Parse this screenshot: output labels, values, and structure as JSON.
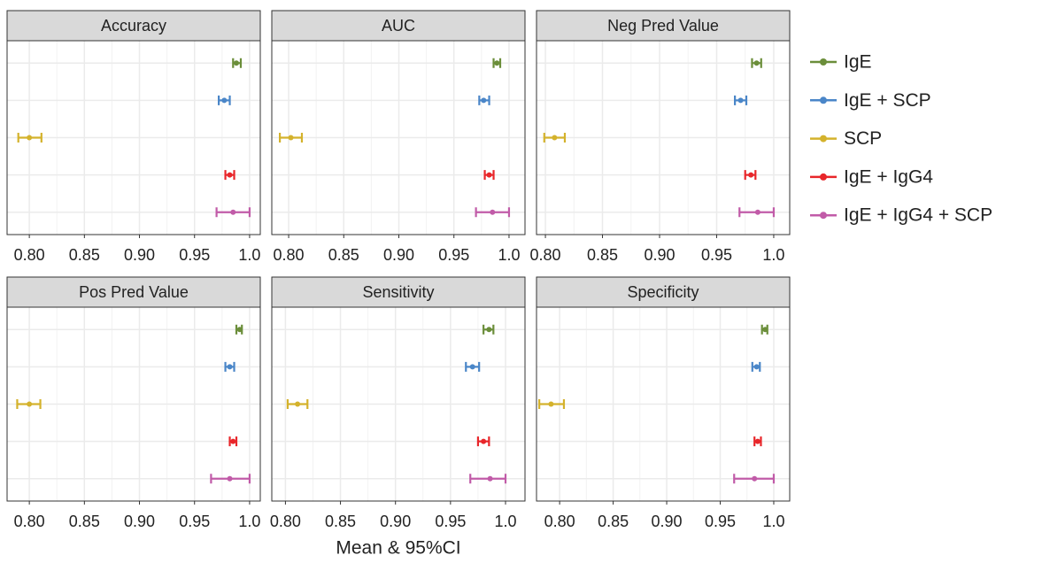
{
  "chart_data": {
    "type": "errorbar",
    "x_label": "Mean & 95%CI",
    "grid": true,
    "legend_position": "right",
    "series": [
      {
        "name": "IgE",
        "color": "#6b8e3a"
      },
      {
        "name": "IgE + SCP",
        "color": "#4a86c8"
      },
      {
        "name": "SCP",
        "color": "#d4b22c"
      },
      {
        "name": "IgE + IgG4",
        "color": "#e8262a"
      },
      {
        "name": "IgE + IgG4 + SCP",
        "color": "#c15ba8"
      }
    ],
    "panels": [
      {
        "title": "Accuracy",
        "xlim": [
          0.7798,
          1.0097
        ],
        "xticks": [
          {
            "value": 0.8,
            "label": "0.80"
          },
          0.85,
          {
            "value": 0.9,
            "label": "0.90"
          },
          0.95,
          {
            "value": 1,
            "label": "1.0"
          }
        ],
        "x_minor_ticks": [
          0.825,
          0.875,
          0.925,
          0.975
        ],
        "values": [
          0.988,
          0.977,
          0.8,
          0.982,
          0.985
        ],
        "lower": [
          0.985,
          0.972,
          0.79,
          0.978,
          0.97
        ],
        "upper": [
          0.992,
          0.982,
          0.811,
          0.986,
          1.0
        ]
      },
      {
        "title": "AUC",
        "xlim": [
          0.7847,
          1.0145
        ],
        "xticks": [
          {
            "value": 0.8,
            "label": "0.80"
          },
          0.85,
          {
            "value": 0.9,
            "label": "0.90"
          },
          0.95,
          {
            "value": 1,
            "label": "1.0"
          }
        ],
        "x_minor_ticks": [
          0.825,
          0.875,
          0.925,
          0.975
        ],
        "values": [
          0.989,
          0.977,
          0.802,
          0.982,
          0.985
        ],
        "lower": [
          0.986,
          0.973,
          0.792,
          0.978,
          0.97
        ],
        "upper": [
          0.992,
          0.982,
          0.812,
          0.986,
          1.0
        ]
      },
      {
        "title": "Neg Pred Value",
        "xlim": [
          0.7922,
          1.014
        ],
        "xticks": [
          {
            "value": 0.8,
            "label": "0.80"
          },
          0.85,
          {
            "value": 0.9,
            "label": "0.90"
          },
          0.95,
          {
            "value": 1,
            "label": "1.0"
          }
        ],
        "x_minor_ticks": [
          0.825,
          0.875,
          0.925,
          0.975
        ],
        "values": [
          0.985,
          0.971,
          0.808,
          0.98,
          0.986
        ],
        "lower": [
          0.981,
          0.966,
          0.799,
          0.975,
          0.97
        ],
        "upper": [
          0.989,
          0.976,
          0.817,
          0.984,
          1.0
        ]
      },
      {
        "title": "Pos Pred Value",
        "xlim": [
          0.7798,
          1.0097
        ],
        "xticks": [
          {
            "value": 0.8,
            "label": "0.80"
          },
          0.85,
          {
            "value": 0.9,
            "label": "0.90"
          },
          0.95,
          {
            "value": 1,
            "label": "1.0"
          }
        ],
        "x_minor_ticks": [
          0.825,
          0.875,
          0.925,
          0.975
        ],
        "values": [
          0.991,
          0.982,
          0.8,
          0.985,
          0.982
        ],
        "lower": [
          0.988,
          0.978,
          0.789,
          0.982,
          0.965
        ],
        "upper": [
          0.993,
          0.986,
          0.81,
          0.988,
          1.0
        ]
      },
      {
        "title": "Sensitivity",
        "xlim": [
          0.7876,
          1.0177
        ],
        "xticks": [
          {
            "value": 0.8,
            "label": "0.80"
          },
          0.85,
          {
            "value": 0.9,
            "label": "0.90"
          },
          0.95,
          {
            "value": 1,
            "label": "1.0"
          }
        ],
        "x_minor_ticks": [
          0.825,
          0.875,
          0.925,
          0.975
        ],
        "values": [
          0.985,
          0.97,
          0.811,
          0.98,
          0.986
        ],
        "lower": [
          0.98,
          0.964,
          0.802,
          0.975,
          0.968
        ],
        "upper": [
          0.989,
          0.976,
          0.82,
          0.985,
          1.0
        ]
      },
      {
        "title": "Specificity",
        "xlim": [
          0.7784,
          1.0149
        ],
        "xticks": [
          {
            "value": 0.8,
            "label": "0.80"
          },
          0.85,
          {
            "value": 0.9,
            "label": "0.90"
          },
          0.95,
          {
            "value": 1,
            "label": "1.0"
          }
        ],
        "x_minor_ticks": [
          0.825,
          0.875,
          0.925,
          0.975
        ],
        "values": [
          0.992,
          0.984,
          0.792,
          0.985,
          0.982
        ],
        "lower": [
          0.989,
          0.98,
          0.781,
          0.982,
          0.963
        ],
        "upper": [
          0.994,
          0.987,
          0.804,
          0.988,
          1.0
        ]
      }
    ]
  }
}
